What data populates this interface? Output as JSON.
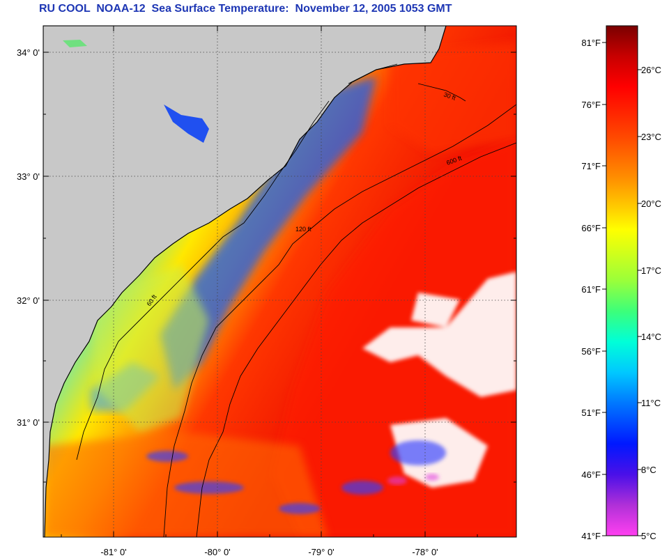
{
  "title": "RU COOL  NOAA-12  Sea Surface Temperature:  November 12, 2005 1053 GMT",
  "latitude_labels": [
    "34° 0'",
    "33° 0'",
    "32° 0'",
    "31° 0'"
  ],
  "longitude_labels": [
    "-81° 0'",
    "-80° 0'",
    "-79° 0'",
    "-78° 0'"
  ],
  "contour_labels": [
    "30 ft",
    "60 ft",
    "120 ft",
    "600 ft"
  ],
  "colorbar": {
    "fahrenheit_labels": [
      "81°F",
      "76°F",
      "71°F",
      "66°F",
      "61°F",
      "56°F",
      "51°F",
      "46°F",
      "41°F"
    ],
    "celsius_labels": [
      "26°C",
      "23°C",
      "20°C",
      "17°C",
      "14°C",
      "11°C",
      "8°C",
      "5°C"
    ],
    "colors_top_to_bottom": [
      "#7a0000",
      "#c80000",
      "#ff0000",
      "#ff4000",
      "#ff8000",
      "#ffb000",
      "#ffe000",
      "#ffff00",
      "#a0ff40",
      "#40ff80",
      "#00ffd0",
      "#00d8ff",
      "#00a0ff",
      "#0060ff",
      "#0020ff",
      "#0000ff",
      "#6000e0",
      "#a020d0",
      "#e040e0",
      "#ff40ff"
    ]
  },
  "colors": {
    "land": "#c8c8c8",
    "title": "#1d36b4"
  }
}
